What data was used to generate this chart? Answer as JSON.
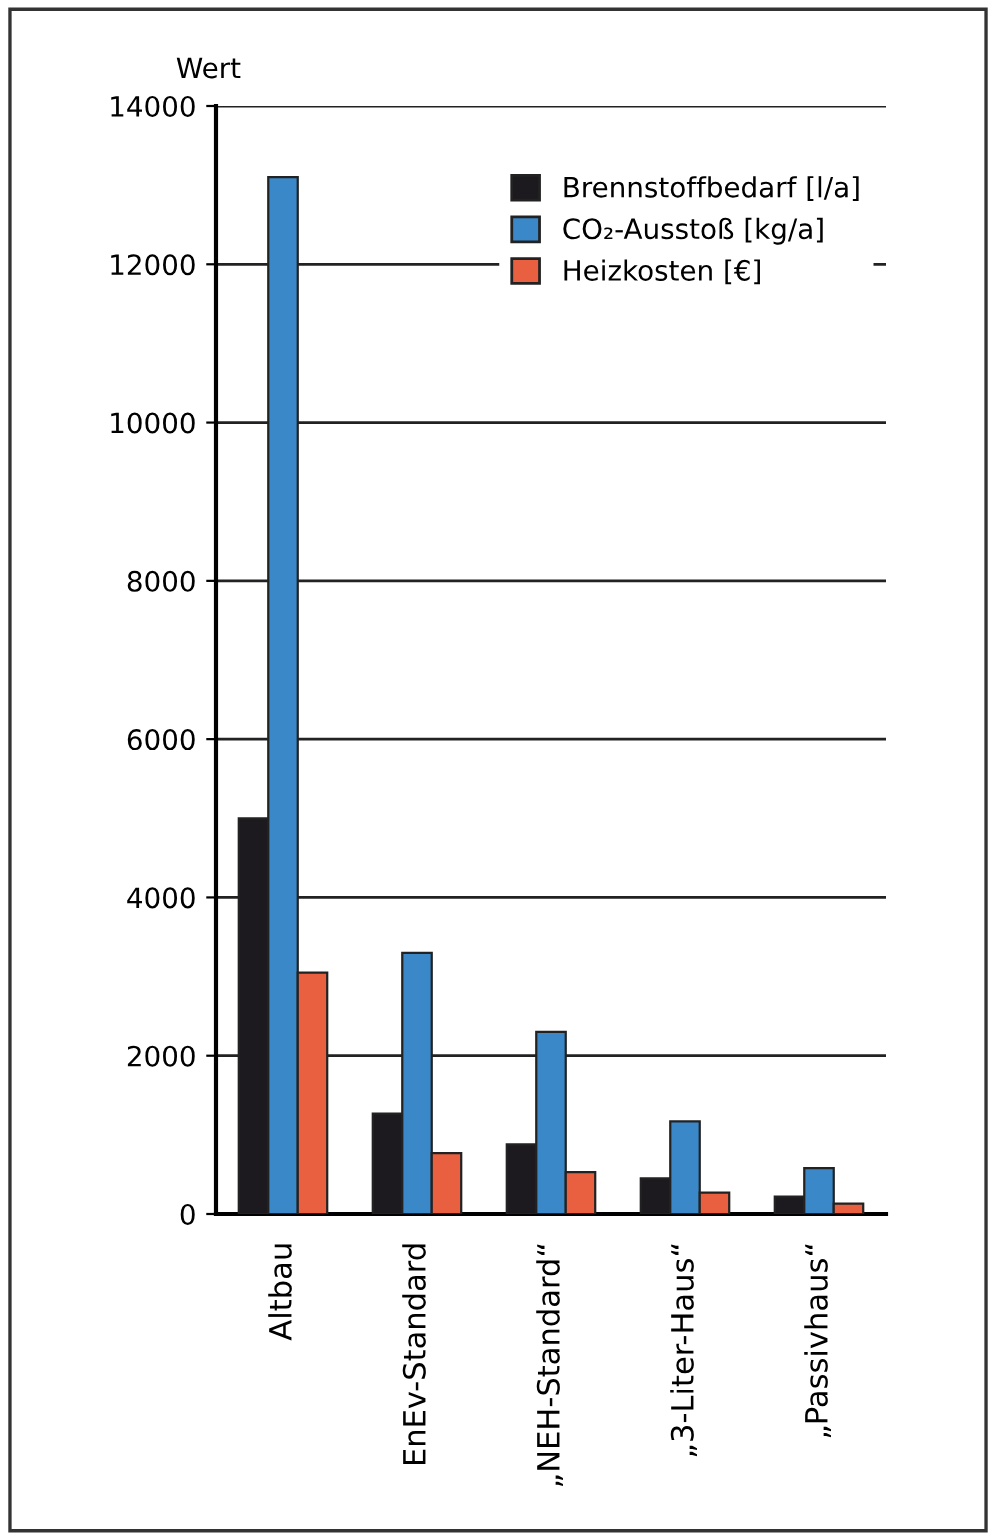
{
  "chart_data": {
    "type": "bar",
    "ylabel": "Wert",
    "categories": [
      "Altbau",
      "EnEv-Standard",
      "„NEH-Standard“",
      "„3-Liter-Haus“",
      "„Passivhaus“"
    ],
    "series": [
      {
        "name": "Brennstoffbedarf [l/a]",
        "color": "#1c1a1e",
        "values": [
          5000,
          1270,
          880,
          450,
          220
        ]
      },
      {
        "name": "CO₂-Ausstoß [kg/a]",
        "color": "#3a88c8",
        "values": [
          13100,
          3300,
          2300,
          1170,
          580
        ]
      },
      {
        "name": "Heizkosten [€]",
        "color": "#e86040",
        "values": [
          3050,
          770,
          530,
          270,
          130
        ]
      }
    ],
    "ylim": [
      0,
      14000
    ],
    "yticks": [
      0,
      2000,
      4000,
      6000,
      8000,
      10000,
      12000,
      14000
    ],
    "grid": "y",
    "legend": "top right"
  }
}
